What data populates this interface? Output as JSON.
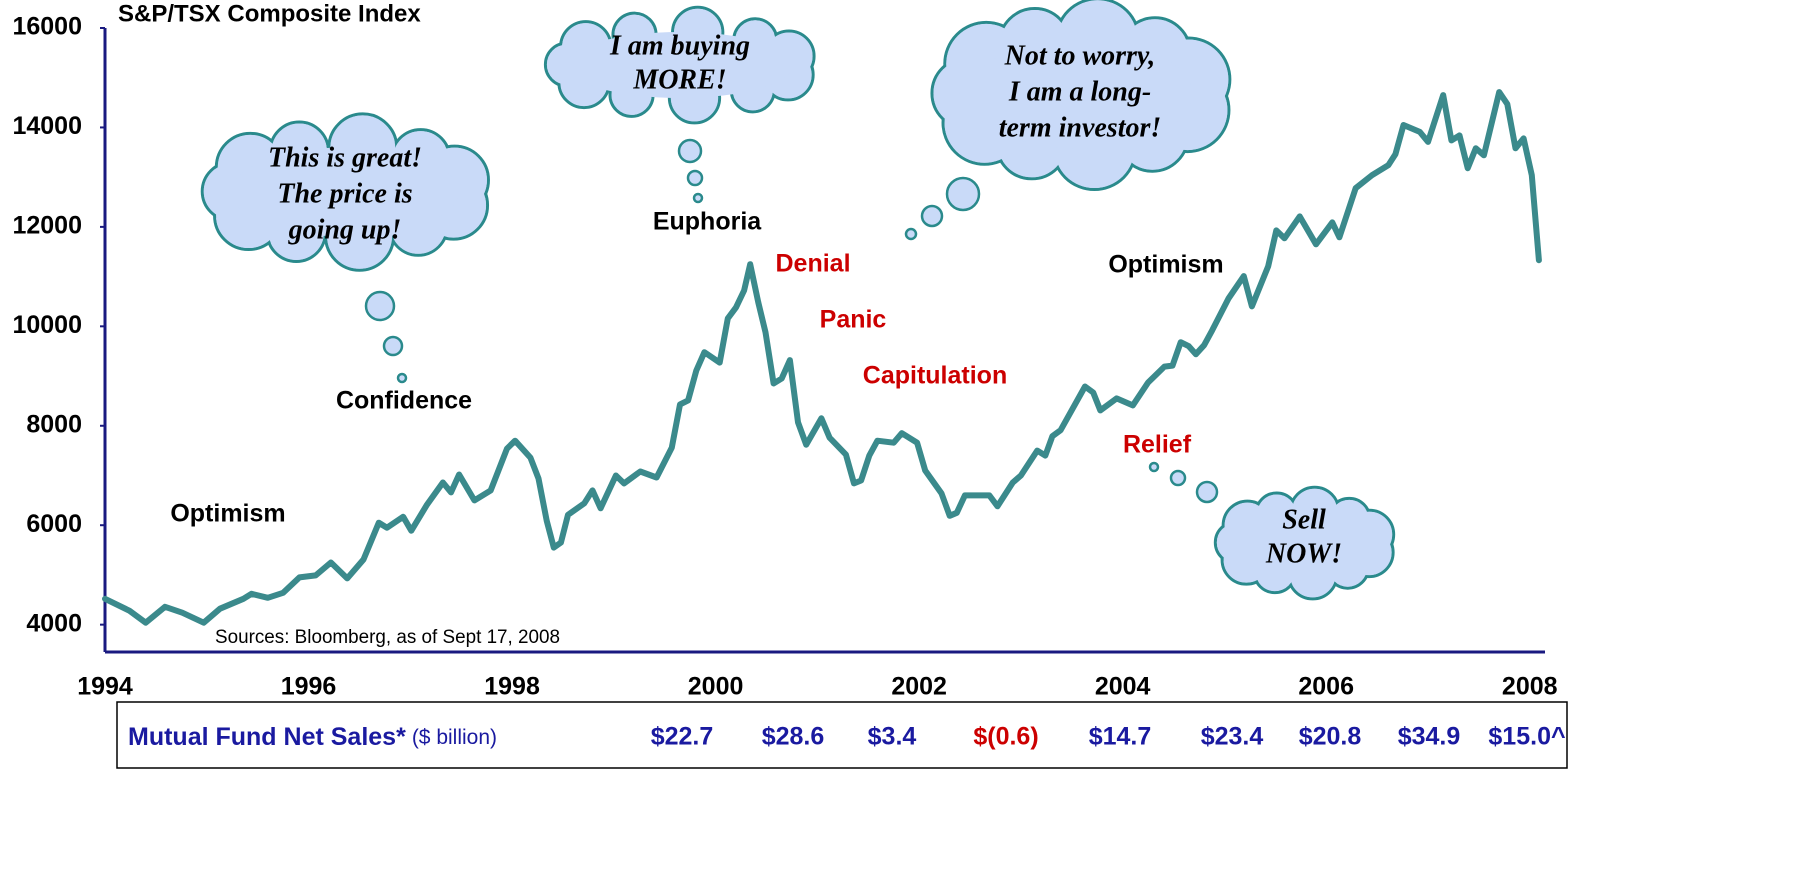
{
  "chart_data": {
    "type": "line",
    "title": "S&P/TSX Composite Index",
    "source": "Sources: Bloomberg, as of Sept 17, 2008",
    "color": "#3b8a8c",
    "xlim": [
      1994,
      2008.15
    ],
    "ylim": [
      3450,
      16000
    ],
    "xticks": [
      1994,
      1996,
      1998,
      2000,
      2002,
      2004,
      2006,
      2008
    ],
    "yticks": [
      4000,
      6000,
      8000,
      10000,
      12000,
      14000,
      16000
    ],
    "x": [
      1994.0,
      1994.24,
      1994.4,
      1994.59,
      1994.76,
      1994.97,
      1995.13,
      1995.36,
      1995.44,
      1995.6,
      1995.75,
      1995.91,
      1996.07,
      1996.22,
      1996.38,
      1996.54,
      1996.69,
      1996.77,
      1996.93,
      1997.01,
      1997.16,
      1997.32,
      1997.4,
      1997.48,
      1997.63,
      1997.79,
      1997.95,
      1998.03,
      1998.18,
      1998.26,
      1998.34,
      1998.41,
      1998.48,
      1998.55,
      1998.71,
      1998.79,
      1998.87,
      1999.02,
      1999.1,
      1999.26,
      1999.42,
      1999.57,
      1999.65,
      1999.73,
      1999.81,
      1999.89,
      2000.04,
      2000.12,
      2000.2,
      2000.28,
      2000.34,
      2000.42,
      2000.49,
      2000.57,
      2000.65,
      2000.73,
      2000.81,
      2000.89,
      2001.04,
      2001.12,
      2001.28,
      2001.36,
      2001.43,
      2001.51,
      2001.59,
      2001.75,
      2001.83,
      2001.98,
      2002.06,
      2002.22,
      2002.3,
      2002.37,
      2002.45,
      2002.69,
      2002.77,
      2002.92,
      2003.0,
      2003.16,
      2003.24,
      2003.31,
      2003.39,
      2003.63,
      2003.71,
      2003.78,
      2003.94,
      2004.1,
      2004.25,
      2004.41,
      2004.49,
      2004.57,
      2004.65,
      2004.72,
      2004.8,
      2004.88,
      2005.04,
      2005.19,
      2005.27,
      2005.43,
      2005.51,
      2005.59,
      2005.74,
      2005.9,
      2006.06,
      2006.13,
      2006.29,
      2006.45,
      2006.61,
      2006.68,
      2006.76,
      2006.92,
      2007.0,
      2007.15,
      2007.23,
      2007.31,
      2007.39,
      2007.47,
      2007.55,
      2007.7,
      2007.78,
      2007.86,
      2007.94,
      2008.02,
      2008.09
    ],
    "values": [
      4520,
      4280,
      4040,
      4360,
      4240,
      4040,
      4320,
      4520,
      4620,
      4540,
      4640,
      4950,
      4990,
      5250,
      4930,
      5310,
      6050,
      5950,
      6170,
      5890,
      6400,
      6860,
      6660,
      7020,
      6500,
      6700,
      7540,
      7700,
      7360,
      6940,
      6090,
      5550,
      5650,
      6210,
      6440,
      6700,
      6340,
      7000,
      6840,
      7080,
      6960,
      7560,
      8430,
      8510,
      9110,
      9480,
      9270,
      10160,
      10380,
      10720,
      11250,
      10480,
      9880,
      8850,
      8950,
      9320,
      8070,
      7620,
      8150,
      7760,
      7420,
      6840,
      6900,
      7400,
      7700,
      7660,
      7850,
      7660,
      7100,
      6640,
      6190,
      6250,
      6600,
      6600,
      6380,
      6860,
      7000,
      7500,
      7400,
      7790,
      7910,
      8790,
      8670,
      8310,
      8550,
      8410,
      8870,
      9190,
      9210,
      9680,
      9600,
      9440,
      9620,
      9920,
      10560,
      11010,
      10400,
      11210,
      11930,
      11770,
      12210,
      11650,
      12090,
      11790,
      12780,
      13040,
      13240,
      13460,
      14050,
      13910,
      13710,
      14650,
      13740,
      13840,
      13180,
      13580,
      13440,
      14710,
      14470,
      13580,
      13780,
      13040,
      11330
    ],
    "annotations": [
      {
        "text": "Optimism",
        "color": "#000000"
      },
      {
        "text": "Confidence",
        "color": "#000000"
      },
      {
        "text": "Euphoria",
        "color": "#000000"
      },
      {
        "text": "Denial",
        "color": "#cc0000"
      },
      {
        "text": "Panic",
        "color": "#cc0000"
      },
      {
        "text": "Capitulation",
        "color": "#cc0000"
      },
      {
        "text": "Relief",
        "color": "#cc0000"
      },
      {
        "text": "Optimism",
        "color": "#000000"
      }
    ],
    "thought_bubbles": [
      {
        "lines": [
          "This is great!",
          "The price is",
          "going up!"
        ]
      },
      {
        "lines": [
          "I am buying",
          "MORE!"
        ]
      },
      {
        "lines": [
          "Not to worry,",
          "I am a long-",
          "term investor!"
        ]
      },
      {
        "lines": [
          "Sell",
          "NOW!"
        ]
      }
    ]
  },
  "mutual_fund_sales": {
    "label": "Mutual Fund Net Sales*",
    "unit": "($ billion)",
    "values": [
      {
        "text": "$22.7",
        "color": "#1a1aa0"
      },
      {
        "text": "$28.6",
        "color": "#1a1aa0"
      },
      {
        "text": "$3.4",
        "color": "#1a1aa0"
      },
      {
        "text": "$(0.6)",
        "color": "#cc0000"
      },
      {
        "text": "$14.7",
        "color": "#1a1aa0"
      },
      {
        "text": "$23.4",
        "color": "#1a1aa0"
      },
      {
        "text": "$20.8",
        "color": "#1a1aa0"
      },
      {
        "text": "$34.9",
        "color": "#1a1aa0"
      },
      {
        "text": "$15.0^",
        "color": "#1a1aa0"
      }
    ]
  }
}
